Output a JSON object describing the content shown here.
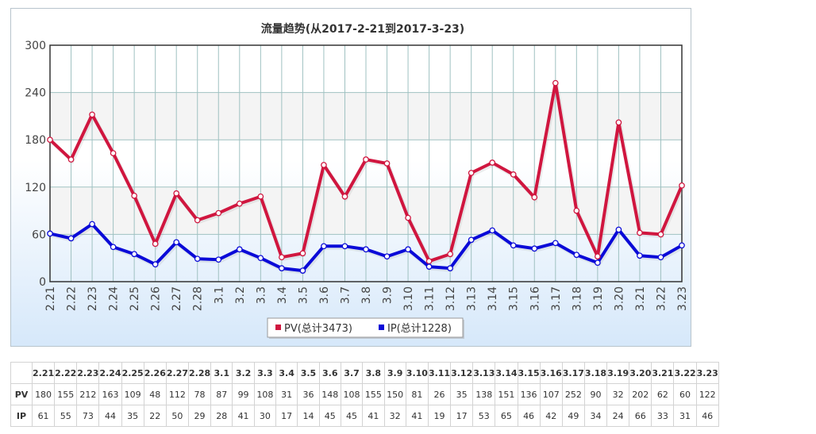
{
  "chart_data": {
    "type": "line",
    "title": "流量趋势(从2017-2-21到2017-3-23)",
    "categories": [
      "2.21",
      "2.22",
      "2.23",
      "2.24",
      "2.25",
      "2.26",
      "2.27",
      "2.28",
      "3.1",
      "3.2",
      "3.3",
      "3.4",
      "3.5",
      "3.6",
      "3.7",
      "3.8",
      "3.9",
      "3.10",
      "3.11",
      "3.12",
      "3.13",
      "3.14",
      "3.15",
      "3.16",
      "3.17",
      "3.18",
      "3.19",
      "3.20",
      "3.21",
      "3.22",
      "3.23"
    ],
    "series": [
      {
        "name": "PV(总计3473)",
        "color": "#d0163f",
        "values": [
          180,
          155,
          212,
          163,
          109,
          48,
          112,
          78,
          87,
          99,
          108,
          31,
          36,
          148,
          108,
          155,
          150,
          81,
          26,
          35,
          138,
          151,
          136,
          107,
          252,
          90,
          32,
          202,
          62,
          60,
          122
        ]
      },
      {
        "name": "IP(总计1228)",
        "color": "#0a0ad8",
        "values": [
          61,
          55,
          73,
          44,
          35,
          22,
          50,
          29,
          28,
          41,
          30,
          17,
          14,
          45,
          45,
          41,
          32,
          41,
          19,
          17,
          53,
          65,
          46,
          42,
          49,
          34,
          24,
          66,
          33,
          31,
          46
        ]
      }
    ],
    "ylim": [
      0,
      300
    ],
    "yticks": [
      0,
      60,
      120,
      180,
      240,
      300
    ],
    "grid": true,
    "legend_position": "bottom-center"
  },
  "table": {
    "row_labels": [
      "PV",
      "IP"
    ]
  }
}
